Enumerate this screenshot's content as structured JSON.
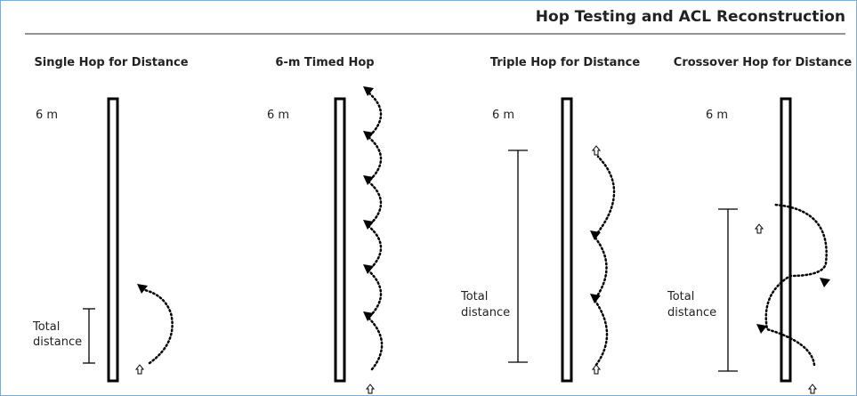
{
  "header": {
    "title": "Hop Testing and ACL Reconstruction"
  },
  "panels": [
    {
      "title": "Single Hop for Distance",
      "length": "6 m",
      "measure": [
        "Total",
        "distance"
      ]
    },
    {
      "title": "6-m Timed Hop",
      "length": "6 m"
    },
    {
      "title": "Triple Hop for Distance",
      "length": "6 m",
      "measure": [
        "Total",
        "distance"
      ]
    },
    {
      "title": "Crossover Hop for Distance",
      "length": "6 m",
      "measure": [
        "Total",
        "distance"
      ]
    }
  ]
}
